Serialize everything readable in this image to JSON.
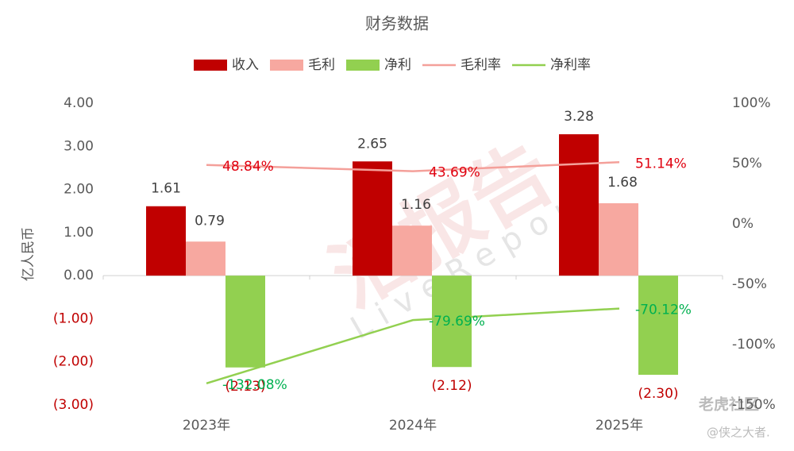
{
  "chart_data": {
    "type": "bar-line",
    "title": "财务数据",
    "ylabel": "亿人民币",
    "categories": [
      "2023年",
      "2024年",
      "2025年"
    ],
    "series": [
      {
        "name": "收入",
        "type": "bar",
        "color": "#c00000",
        "values": [
          1.61,
          2.65,
          3.28
        ]
      },
      {
        "name": "毛利",
        "type": "bar",
        "color": "#f7a8a0",
        "values": [
          0.79,
          1.16,
          1.68
        ]
      },
      {
        "name": "净利",
        "type": "bar",
        "color": "#92d050",
        "values": [
          -2.13,
          -2.12,
          -2.3
        ],
        "value_labels": [
          "(2.13)",
          "(2.12)",
          "(2.30)"
        ]
      },
      {
        "name": "毛利率",
        "type": "line",
        "axis": "y2",
        "color": "#f4a09a",
        "label_color": "#e0000f",
        "values": [
          48.84,
          43.69,
          51.14
        ],
        "value_labels": [
          "48.84%",
          "43.69%",
          "51.14%"
        ]
      },
      {
        "name": "净利率",
        "type": "line",
        "axis": "y2",
        "color": "#92d050",
        "label_color": "#00b050",
        "values": [
          -132.08,
          -79.69,
          -70.12
        ],
        "value_labels": [
          "-132.08%",
          "-79.69%",
          "-70.12%"
        ]
      }
    ],
    "ylim": [
      -3,
      4
    ],
    "yticks": [
      {
        "value": 4,
        "label": "4.00"
      },
      {
        "value": 3,
        "label": "3.00"
      },
      {
        "value": 2,
        "label": "2.00"
      },
      {
        "value": 1,
        "label": "1.00"
      },
      {
        "value": 0,
        "label": "0.00"
      },
      {
        "value": -1,
        "label": "(1.00)"
      },
      {
        "value": -2,
        "label": "(2.00)"
      },
      {
        "value": -3,
        "label": "(3.00)"
      }
    ],
    "y2lim": [
      -150,
      100
    ],
    "y2ticks": [
      {
        "value": 100,
        "label": "100%"
      },
      {
        "value": 50,
        "label": "50%"
      },
      {
        "value": 0,
        "label": "0%"
      },
      {
        "value": -50,
        "label": "-50%"
      },
      {
        "value": -100,
        "label": "-100%"
      },
      {
        "value": -150,
        "label": "-150%"
      }
    ],
    "negative_label_color": "#c00000",
    "grid": false,
    "legend": "top",
    "watermarks": [
      "活报告",
      "LiveReport",
      "老虎社区",
      "@侠之大者."
    ]
  }
}
